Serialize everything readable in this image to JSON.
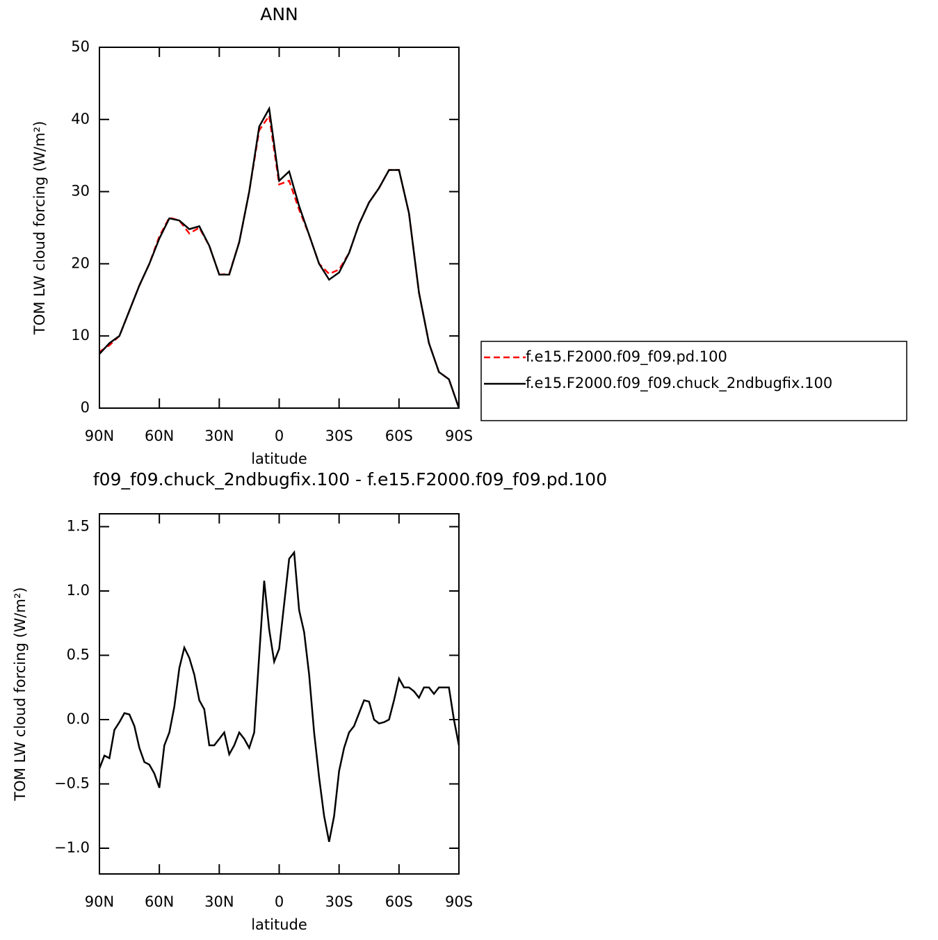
{
  "chart_data": [
    {
      "type": "line",
      "title": "ANN",
      "xlabel": "latitude",
      "ylabel": "TOM LW cloud forcing (W/m²)",
      "x": [
        90,
        85,
        80,
        75,
        70,
        65,
        60,
        55,
        50,
        45,
        40,
        35,
        30,
        25,
        20,
        15,
        10,
        5,
        0,
        -5,
        -10,
        -15,
        -20,
        -25,
        -30,
        -35,
        -40,
        -45,
        -50,
        -55,
        -60,
        -65,
        -70,
        -75,
        -80,
        -85,
        -90
      ],
      "series": [
        {
          "name": "f.e15.F2000.f09_f09.pd.100",
          "color": "#ff0000",
          "line_style": "dashed",
          "values": [
            7.8,
            8.7,
            10,
            13.5,
            17,
            20,
            23.8,
            26.4,
            26,
            24.2,
            25,
            22.5,
            18.5,
            18.6,
            23,
            30,
            38.5,
            40.5,
            31,
            31.5,
            27.5,
            24,
            20,
            18.6,
            19.2,
            21.5,
            25.5,
            28.5,
            30.5,
            33,
            33,
            27,
            16,
            9,
            5,
            4,
            0
          ]
        },
        {
          "name": "f.e15.F2000.f09_f09.chuck_2ndbugfix.100",
          "color": "#000000",
          "line_style": "solid",
          "values": [
            7.5,
            9,
            10,
            13.5,
            17,
            20,
            23.5,
            26.3,
            26,
            24.8,
            25.2,
            22.5,
            18.5,
            18.5,
            23,
            30,
            39,
            41.5,
            31.5,
            32.8,
            28,
            24,
            20,
            17.8,
            18.8,
            21.5,
            25.5,
            28.5,
            30.5,
            33,
            33,
            27,
            16,
            9,
            5,
            4,
            0
          ]
        }
      ],
      "xlim": [
        90,
        -90
      ],
      "xticks": [
        {
          "value": 90,
          "label": "90N"
        },
        {
          "value": 60,
          "label": "60N"
        },
        {
          "value": 30,
          "label": "30N"
        },
        0,
        {
          "value": -30,
          "label": "30S"
        },
        {
          "value": -60,
          "label": "60S"
        },
        {
          "value": -90,
          "label": "90S"
        }
      ],
      "ylim": [
        0,
        50
      ],
      "yticks": [
        0,
        10,
        20,
        30,
        40,
        50
      ],
      "legend": "outside-right"
    },
    {
      "type": "line",
      "title": "f09_f09.chuck_2ndbugfix.100 - f.e15.F2000.f09_f09.pd.100",
      "xlabel": "latitude",
      "ylabel": "TOM LW cloud forcing (W/m²)",
      "x": [
        90,
        87.5,
        85,
        82.5,
        80,
        77.5,
        75,
        72.5,
        70,
        67.5,
        65,
        62.5,
        60,
        57.5,
        55,
        52.5,
        50,
        47.5,
        45,
        42.5,
        40,
        37.5,
        35,
        32.5,
        30,
        27.5,
        25,
        22.5,
        20,
        17.5,
        15,
        12.5,
        10,
        7.5,
        5,
        2.5,
        0,
        -2.5,
        -5,
        -7.5,
        -10,
        -12.5,
        -15,
        -17.5,
        -20,
        -22.5,
        -25,
        -27.5,
        -30,
        -32.5,
        -35,
        -37.5,
        -40,
        -42.5,
        -45,
        -47.5,
        -50,
        -52.5,
        -55,
        -57.5,
        -60,
        -62.5,
        -65,
        -67.5,
        -70,
        -72.5,
        -75,
        -77.5,
        -80,
        -82.5,
        -85,
        -87.5,
        -90
      ],
      "series": [
        {
          "color": "#000000",
          "line_style": "solid",
          "values": [
            -0.38,
            -0.28,
            -0.3,
            -0.08,
            -0.02,
            0.05,
            0.04,
            -0.05,
            -0.22,
            -0.33,
            -0.35,
            -0.42,
            -0.53,
            -0.2,
            -0.1,
            0.1,
            0.4,
            0.56,
            0.48,
            0.35,
            0.15,
            0.08,
            -0.2,
            -0.2,
            -0.15,
            -0.1,
            -0.27,
            -0.2,
            -0.1,
            -0.15,
            -0.22,
            -0.1,
            0.5,
            1.08,
            0.7,
            0.45,
            0.55,
            0.9,
            1.25,
            1.3,
            0.85,
            0.68,
            0.35,
            -0.1,
            -0.45,
            -0.75,
            -0.95,
            -0.75,
            -0.4,
            -0.22,
            -0.1,
            -0.05,
            0.05,
            0.15,
            0.14,
            0.0,
            -0.03,
            -0.02,
            0.0,
            0.15,
            0.32,
            0.25,
            0.25,
            0.22,
            0.17,
            0.25,
            0.25,
            0.2,
            0.25,
            0.25,
            0.25,
            0.0,
            -0.2
          ]
        }
      ],
      "xlim": [
        90,
        -90
      ],
      "xticks": [
        {
          "value": 90,
          "label": "90N"
        },
        {
          "value": 60,
          "label": "60N"
        },
        {
          "value": 30,
          "label": "30N"
        },
        0,
        {
          "value": -30,
          "label": "30S"
        },
        {
          "value": -60,
          "label": "60S"
        },
        {
          "value": -90,
          "label": "90S"
        }
      ],
      "ylim": [
        -1.2,
        1.6
      ],
      "yticks": [
        {
          "value": -1.0,
          "label": "−1.0"
        },
        {
          "value": -0.5,
          "label": "−0.5"
        },
        {
          "value": 0.0,
          "label": "0.0"
        },
        0.5,
        {
          "value": 1.0,
          "label": "1.0"
        },
        1.5
      ]
    }
  ]
}
